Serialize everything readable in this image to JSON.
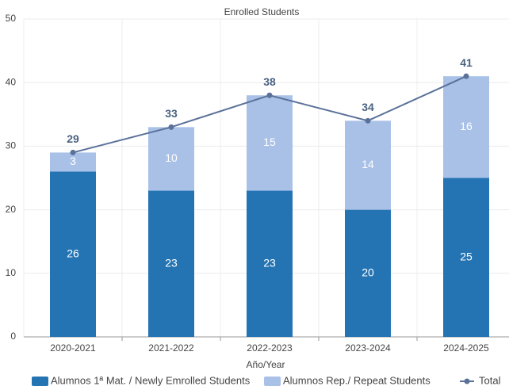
{
  "chart_data": {
    "type": "bar",
    "stacked": true,
    "title": "Enrolled Students",
    "x_label": "Año/Year",
    "categories": [
      "2020-2021",
      "2021-2022",
      "2022-2023",
      "2023-2024",
      "2024-2025"
    ],
    "series": [
      {
        "name": "Alumnos 1ª Mat. / Newly Emrolled Students",
        "color": "#2474b4",
        "values": [
          26,
          23,
          23,
          20,
          25
        ]
      },
      {
        "name": "Alumnos Rep./ Repeat Students",
        "color": "#a9c1e7",
        "values": [
          3,
          10,
          15,
          14,
          16
        ]
      },
      {
        "name": "Total",
        "type": "line",
        "color": "#5a719a",
        "values": [
          29,
          33,
          38,
          34,
          41
        ]
      }
    ],
    "ylim": [
      0,
      50
    ],
    "yticks": [
      0,
      10,
      20,
      30,
      40,
      50
    ],
    "grid": true,
    "legend": "bottom"
  }
}
